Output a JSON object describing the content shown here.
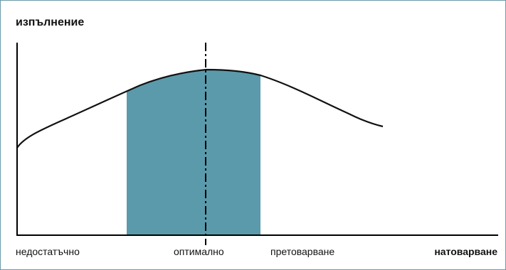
{
  "diagram": {
    "y_axis_title": "изпълнение",
    "x_axis_title": "натоварване",
    "x_labels": {
      "low": "недостатъчно",
      "optimal": "оптимално",
      "high": "претоварване"
    },
    "colors": {
      "optimal_zone": "#5a9aab",
      "frame_border": "#6a9aa8",
      "curve": "#111111",
      "axes": "#000000"
    }
  }
}
